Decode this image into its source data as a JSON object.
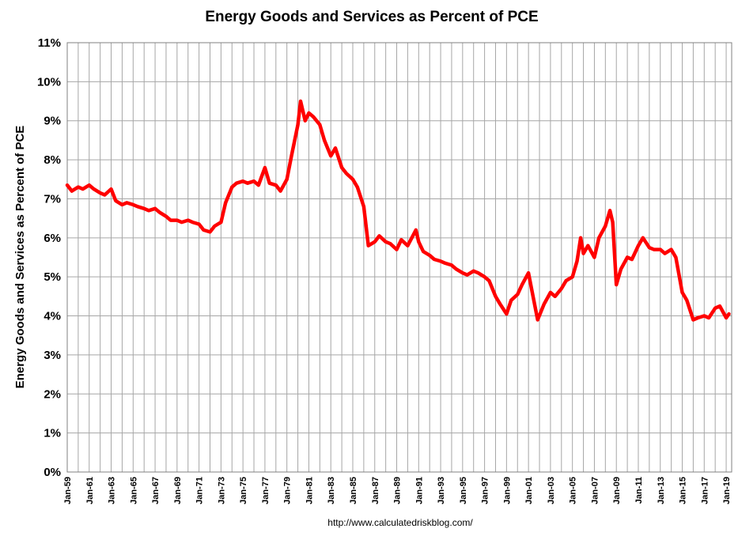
{
  "chart_data": {
    "type": "line",
    "title": "Energy Goods and Services as Percent of PCE",
    "ylabel": "Energy Goods and Services as Percent of PCE",
    "source_text": "http://www.calculatedriskblog.com/",
    "ylim": [
      0,
      11
    ],
    "y_ticks": [
      "0%",
      "1%",
      "2%",
      "3%",
      "4%",
      "5%",
      "6%",
      "7%",
      "8%",
      "9%",
      "10%",
      "11%"
    ],
    "x_ticks": [
      "Jan-59",
      "Jan-61",
      "Jan-63",
      "Jan-65",
      "Jan-67",
      "Jan-69",
      "Jan-71",
      "Jan-73",
      "Jan-75",
      "Jan-77",
      "Jan-79",
      "Jan-81",
      "Jan-83",
      "Jan-85",
      "Jan-87",
      "Jan-89",
      "Jan-91",
      "Jan-93",
      "Jan-95",
      "Jan-97",
      "Jan-99",
      "Jan-01",
      "Jan-03",
      "Jan-05",
      "Jan-07",
      "Jan-09",
      "Jan-11",
      "Jan-13",
      "Jan-15",
      "Jan-17",
      "Jan-19"
    ],
    "xlim": [
      "1959-01",
      "2019-07"
    ],
    "grid": true,
    "line_color": "#ff0000",
    "grid_color": "#a6a6a6",
    "series": [
      {
        "points": [
          [
            "1959-01",
            7.35
          ],
          [
            "1959-06",
            7.2
          ],
          [
            "1960-01",
            7.3
          ],
          [
            "1960-06",
            7.25
          ],
          [
            "1961-01",
            7.35
          ],
          [
            "1961-06",
            7.25
          ],
          [
            "1962-01",
            7.15
          ],
          [
            "1962-06",
            7.1
          ],
          [
            "1963-01",
            7.25
          ],
          [
            "1963-06",
            6.95
          ],
          [
            "1964-01",
            6.85
          ],
          [
            "1964-06",
            6.9
          ],
          [
            "1965-01",
            6.85
          ],
          [
            "1965-06",
            6.8
          ],
          [
            "1966-01",
            6.75
          ],
          [
            "1966-06",
            6.7
          ],
          [
            "1967-01",
            6.75
          ],
          [
            "1967-06",
            6.65
          ],
          [
            "1968-01",
            6.55
          ],
          [
            "1968-06",
            6.45
          ],
          [
            "1969-01",
            6.45
          ],
          [
            "1969-06",
            6.4
          ],
          [
            "1970-01",
            6.45
          ],
          [
            "1970-06",
            6.4
          ],
          [
            "1971-01",
            6.35
          ],
          [
            "1971-06",
            6.2
          ],
          [
            "1972-01",
            6.15
          ],
          [
            "1972-06",
            6.3
          ],
          [
            "1973-01",
            6.4
          ],
          [
            "1973-06",
            6.9
          ],
          [
            "1974-01",
            7.3
          ],
          [
            "1974-06",
            7.4
          ],
          [
            "1975-01",
            7.45
          ],
          [
            "1975-06",
            7.4
          ],
          [
            "1976-01",
            7.45
          ],
          [
            "1976-06",
            7.35
          ],
          [
            "1977-01",
            7.8
          ],
          [
            "1977-06",
            7.4
          ],
          [
            "1978-01",
            7.35
          ],
          [
            "1978-06",
            7.2
          ],
          [
            "1979-01",
            7.5
          ],
          [
            "1979-06",
            8.1
          ],
          [
            "1980-01",
            8.9
          ],
          [
            "1980-04",
            9.5
          ],
          [
            "1980-09",
            9.0
          ],
          [
            "1981-01",
            9.2
          ],
          [
            "1981-06",
            9.1
          ],
          [
            "1982-01",
            8.9
          ],
          [
            "1982-06",
            8.5
          ],
          [
            "1983-01",
            8.1
          ],
          [
            "1983-06",
            8.3
          ],
          [
            "1984-01",
            7.8
          ],
          [
            "1984-06",
            7.65
          ],
          [
            "1985-01",
            7.5
          ],
          [
            "1985-06",
            7.3
          ],
          [
            "1986-01",
            6.8
          ],
          [
            "1986-06",
            5.8
          ],
          [
            "1987-01",
            5.9
          ],
          [
            "1987-06",
            6.05
          ],
          [
            "1988-01",
            5.9
          ],
          [
            "1988-06",
            5.85
          ],
          [
            "1989-01",
            5.7
          ],
          [
            "1989-06",
            5.95
          ],
          [
            "1990-01",
            5.8
          ],
          [
            "1990-10",
            6.2
          ],
          [
            "1991-01",
            5.9
          ],
          [
            "1991-06",
            5.65
          ],
          [
            "1992-01",
            5.55
          ],
          [
            "1992-06",
            5.45
          ],
          [
            "1993-01",
            5.4
          ],
          [
            "1993-06",
            5.35
          ],
          [
            "1994-01",
            5.3
          ],
          [
            "1994-06",
            5.2
          ],
          [
            "1995-01",
            5.1
          ],
          [
            "1995-06",
            5.05
          ],
          [
            "1996-01",
            5.15
          ],
          [
            "1996-06",
            5.1
          ],
          [
            "1997-01",
            5.0
          ],
          [
            "1997-06",
            4.9
          ],
          [
            "1998-01",
            4.5
          ],
          [
            "1998-06",
            4.3
          ],
          [
            "1999-01",
            4.05
          ],
          [
            "1999-06",
            4.4
          ],
          [
            "2000-01",
            4.55
          ],
          [
            "2000-06",
            4.8
          ],
          [
            "2001-01",
            5.1
          ],
          [
            "2001-06",
            4.5
          ],
          [
            "2001-11",
            3.9
          ],
          [
            "2002-06",
            4.3
          ],
          [
            "2003-01",
            4.6
          ],
          [
            "2003-06",
            4.5
          ],
          [
            "2004-01",
            4.7
          ],
          [
            "2004-06",
            4.9
          ],
          [
            "2005-01",
            5.0
          ],
          [
            "2005-06",
            5.4
          ],
          [
            "2005-10",
            6.0
          ],
          [
            "2006-01",
            5.6
          ],
          [
            "2006-06",
            5.8
          ],
          [
            "2007-01",
            5.5
          ],
          [
            "2007-06",
            6.0
          ],
          [
            "2008-01",
            6.3
          ],
          [
            "2008-06",
            6.7
          ],
          [
            "2008-09",
            6.4
          ],
          [
            "2009-01",
            4.8
          ],
          [
            "2009-06",
            5.2
          ],
          [
            "2010-01",
            5.5
          ],
          [
            "2010-06",
            5.45
          ],
          [
            "2011-01",
            5.8
          ],
          [
            "2011-06",
            6.0
          ],
          [
            "2012-01",
            5.75
          ],
          [
            "2012-06",
            5.7
          ],
          [
            "2013-01",
            5.7
          ],
          [
            "2013-06",
            5.6
          ],
          [
            "2014-01",
            5.7
          ],
          [
            "2014-06",
            5.5
          ],
          [
            "2015-01",
            4.6
          ],
          [
            "2015-06",
            4.4
          ],
          [
            "2016-01",
            3.9
          ],
          [
            "2016-06",
            3.95
          ],
          [
            "2017-01",
            4.0
          ],
          [
            "2017-06",
            3.95
          ],
          [
            "2018-01",
            4.2
          ],
          [
            "2018-06",
            4.25
          ],
          [
            "2019-01",
            3.95
          ],
          [
            "2019-04",
            4.05
          ]
        ]
      }
    ]
  }
}
